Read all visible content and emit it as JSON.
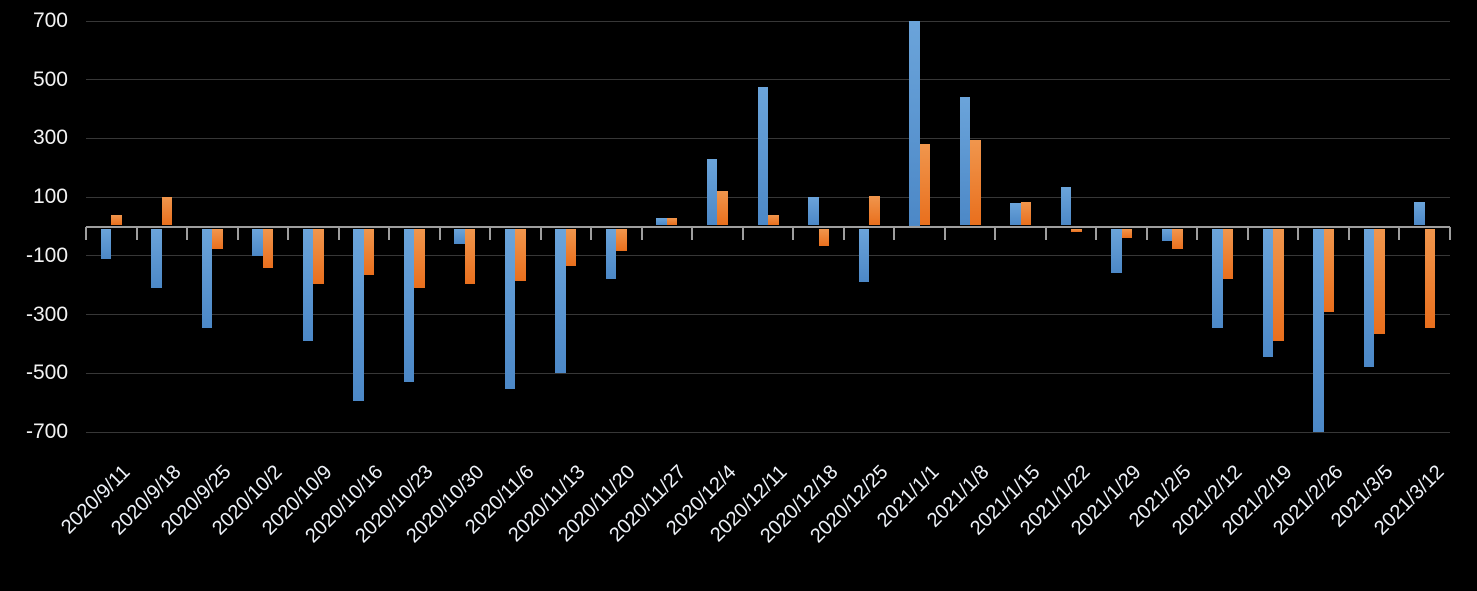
{
  "chart_data": {
    "type": "bar",
    "title": "",
    "categories": [
      "2020/9/11",
      "2020/9/18",
      "2020/9/25",
      "2020/10/2",
      "2020/10/9",
      "2020/10/16",
      "2020/10/23",
      "2020/10/30",
      "2020/11/6",
      "2020/11/13",
      "2020/11/20",
      "2020/11/27",
      "2020/12/4",
      "2020/12/11",
      "2020/12/18",
      "2020/12/25",
      "2021/1/1",
      "2021/1/8",
      "2021/1/15",
      "2021/1/22",
      "2021/1/29",
      "2021/2/5",
      "2021/2/12",
      "2021/2/19",
      "2021/2/26",
      "2021/3/5",
      "2021/3/12"
    ],
    "series": [
      {
        "name": "blue",
        "color": "#5B9BD5",
        "values": [
          -110,
          -210,
          -345,
          -100,
          -390,
          -595,
          -530,
          -60,
          -555,
          -500,
          -180,
          30,
          230,
          475,
          100,
          -190,
          700,
          440,
          80,
          135,
          -160,
          -50,
          -345,
          -445,
          -700,
          -480,
          85
        ]
      },
      {
        "name": "orange",
        "color": "#ED7D31",
        "values": [
          40,
          100,
          -75,
          -140,
          -195,
          -165,
          -210,
          -195,
          -185,
          -135,
          -85,
          30,
          120,
          40,
          -65,
          105,
          280,
          295,
          85,
          -20,
          -40,
          -75,
          -180,
          -390,
          -290,
          -365,
          -345
        ]
      }
    ],
    "xlabel": "",
    "ylabel": "",
    "ylim": [
      -700,
      700
    ],
    "yticks": [
      700,
      500,
      300,
      100,
      -100,
      -300,
      -500,
      -700
    ],
    "grid": true,
    "legend": "none",
    "x_label_rotation_deg": -45,
    "background_color": "#000000",
    "text_color": "#F2F2F2",
    "gridline_color": "#373737",
    "axis_color": "#9E9E9E"
  }
}
